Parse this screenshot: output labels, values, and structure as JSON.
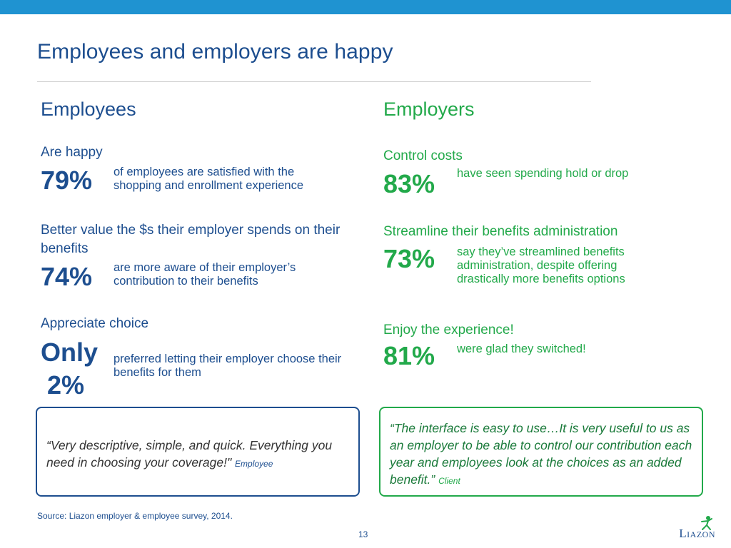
{
  "title": "Employees and employers are happy",
  "employees": {
    "heading": "Employees",
    "items": [
      {
        "subtitle": "Are happy",
        "stat": "79%",
        "desc": "of employees are satisfied with the shopping and enrollment experience"
      },
      {
        "subtitle": "Better value the $s their employer spends on their benefits",
        "stat": "74%",
        "desc": "are more aware of their employer’s contribution to their benefits"
      },
      {
        "subtitle": "Appreciate choice",
        "stat_prefix": "Only",
        "stat": "2%",
        "desc": "preferred letting their employer choose their benefits for them"
      }
    ],
    "quote": {
      "text": "“Very descriptive, simple, and quick. Everything you need in choosing your coverage!\"",
      "attribution": "Employee"
    }
  },
  "employers": {
    "heading": "Employers",
    "items": [
      {
        "subtitle": "Control costs",
        "stat": "83%",
        "desc": "have seen spending hold or drop"
      },
      {
        "subtitle": "Streamline their benefits administration",
        "stat": "73%",
        "desc": "say they’ve streamlined benefits administration, despite offering drastically more benefits options"
      },
      {
        "subtitle": "Enjoy the experience!",
        "stat": "81%",
        "desc": "were glad they switched!"
      }
    ],
    "quote": {
      "text": "“The interface is easy to use…It is very useful to us as an employer to be able to control our contribution each year and employees look at the choices as an added benefit.”",
      "attribution": "Client"
    }
  },
  "footer": {
    "source": "Source: Liazon employer & employee survey, 2014.",
    "page_number": "13",
    "logo_text": "Liazon"
  },
  "colors": {
    "employee_blue": "#1d4e8f",
    "employer_green": "#22a94a",
    "top_bar": "#1f93d1"
  }
}
